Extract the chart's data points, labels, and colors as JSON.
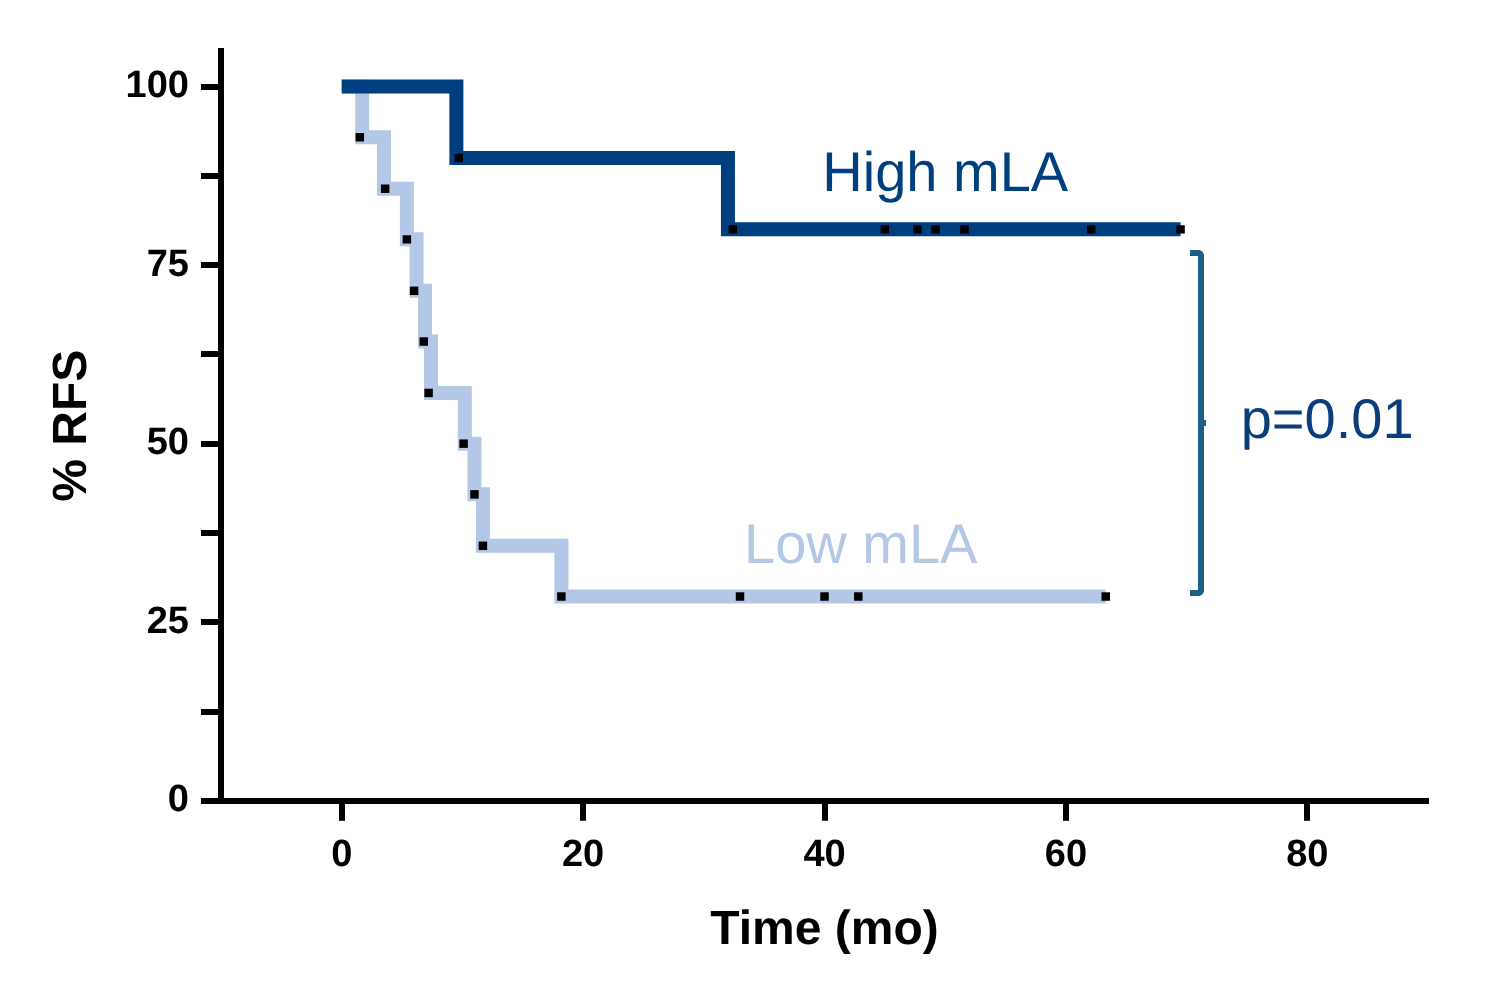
{
  "chart_data": {
    "type": "step",
    "xlabel": "Time (mo)",
    "ylabel": "% RFS",
    "xlim": [
      -10,
      90
    ],
    "xticks": [
      0,
      20,
      40,
      60,
      80
    ],
    "ylim": [
      0,
      105
    ],
    "yticks": [
      0,
      {
        "value": 12.5,
        "label": null
      },
      25,
      {
        "value": 37.5,
        "label": null
      },
      50,
      {
        "value": 62.5,
        "label": null
      },
      75,
      {
        "value": 87.5,
        "label": null
      },
      100
    ],
    "grid": false,
    "legend": false,
    "line_style": "solid",
    "annotations": [
      "p=0.01"
    ],
    "series": [
      {
        "name": "High mLA",
        "color": "#003f7f",
        "marker": "none",
        "x": [
          0,
          9.5,
          32,
          69.5
        ],
        "values": [
          100,
          90,
          80,
          80
        ]
      },
      {
        "name": "Low mLA",
        "color": "#b4c7e7",
        "marker": "none",
        "x": [
          0,
          1.7,
          3.5,
          5.4,
          6.2,
          6.9,
          7.4,
          10.2,
          11,
          11.7,
          18.2,
          63.3
        ],
        "values": [
          100,
          92.9,
          85.7,
          78.6,
          71.4,
          64.3,
          57.1,
          50,
          42.9,
          35.7,
          28.6,
          28.6
        ]
      },
      {
        "type": "scatter",
        "color": "#000000",
        "marker": "square",
        "x": [
          9.7,
          32.4,
          45,
          47.7,
          49.2,
          51.6,
          62.1,
          69.5,
          1.5,
          3.6,
          5.4,
          6,
          6.8,
          7.2,
          10.1,
          11,
          11.7,
          18.2,
          33,
          40,
          42.8,
          63.3
        ],
        "values": [
          90,
          80,
          80,
          80,
          80,
          80,
          80,
          80,
          92.9,
          85.7,
          78.6,
          71.4,
          64.3,
          57.1,
          50,
          42.9,
          35.7,
          28.6,
          28.6,
          28.6,
          28.6,
          28.6
        ]
      }
    ]
  }
}
